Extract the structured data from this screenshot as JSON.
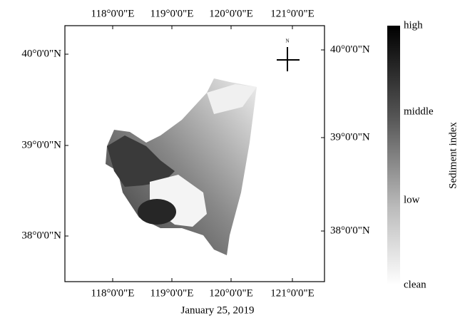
{
  "map": {
    "longitude_labels_top": [
      "118°0'0\"E",
      "119°0'0\"E",
      "120°0'0\"E",
      "121°0'0\"E"
    ],
    "longitude_labels_bottom": [
      "118°0'0\"E",
      "119°0'0\"E",
      "120°0'0\"E",
      "121°0'0\"E"
    ],
    "latitude_labels_left": [
      "40°0'0\"N",
      "39°0'0\"N",
      "38°0'0\"N"
    ],
    "latitude_labels_right": [
      "40°0'0\"N",
      "39°0'0\"N",
      "38°0'0\"N"
    ],
    "north_label": "N",
    "caption": "January 25, 2019"
  },
  "legend": {
    "title": "Sediment index",
    "labels": [
      "high",
      "middle",
      "low",
      "clean"
    ]
  }
}
